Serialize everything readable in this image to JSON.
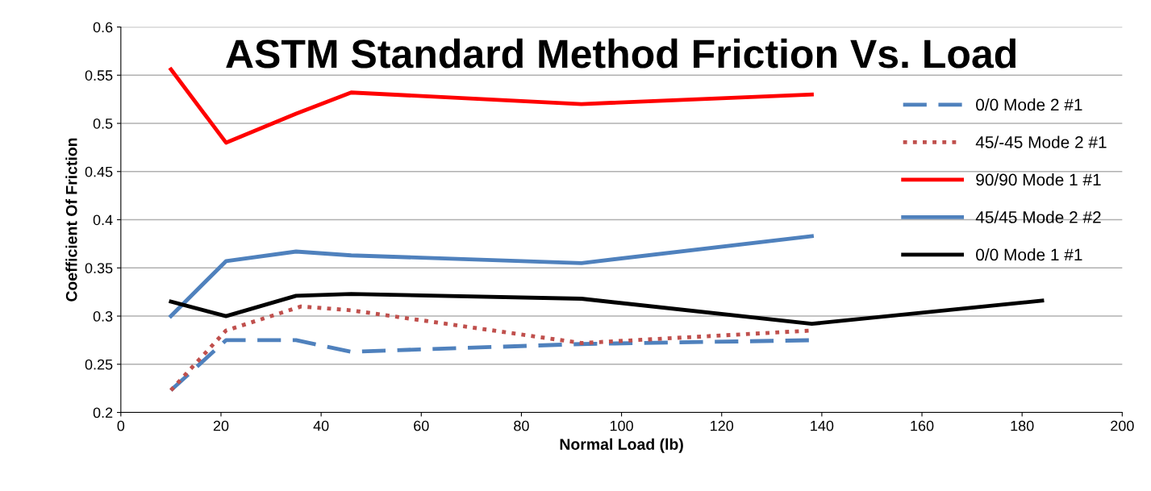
{
  "chart_data": {
    "type": "line",
    "title": "ASTM Standard Method Friction Vs. Load",
    "xlabel": "Normal Load (lb)",
    "ylabel": "Coefficient Of Friction",
    "xlim": [
      0,
      200
    ],
    "xticks": [
      0,
      20,
      40,
      60,
      80,
      100,
      120,
      140,
      160,
      180,
      200
    ],
    "ylim": [
      0.2,
      0.6
    ],
    "yticks": [
      0.2,
      0.25,
      0.3,
      0.35,
      0.4,
      0.45,
      0.5,
      0.55,
      0.6
    ],
    "grid": "y",
    "legend": "right",
    "marker": "none",
    "series": [
      {
        "name": "0/0 Mode 2 #1",
        "color": "#4f81bd",
        "line_style": "dashed",
        "x": [
          10,
          21,
          35,
          46,
          92,
          138
        ],
        "values": [
          0.223,
          0.275,
          0.275,
          0.263,
          0.271,
          0.275
        ]
      },
      {
        "name": "45/-45 Mode 2 #1",
        "color": "#c0504d",
        "line_style": "dotted",
        "x": [
          10,
          21,
          36,
          46,
          92,
          138
        ],
        "values": [
          0.223,
          0.285,
          0.31,
          0.306,
          0.272,
          0.285
        ]
      },
      {
        "name": "90/90 Mode 1 #1",
        "color": "#ff0000",
        "line_style": "solid",
        "x": [
          10,
          21,
          35,
          46,
          92,
          138
        ],
        "values": [
          0.556,
          0.48,
          0.51,
          0.532,
          0.52,
          0.53
        ]
      },
      {
        "name": "45/45 Mode 2 #2",
        "color": "#4f81bd",
        "line_style": "solid",
        "x": [
          10,
          21,
          35,
          46,
          92,
          138
        ],
        "values": [
          0.3,
          0.357,
          0.367,
          0.363,
          0.355,
          0.383
        ]
      },
      {
        "name": "0/0 Mode 1 #1",
        "color": "#000000",
        "line_style": "solid",
        "x": [
          10,
          21,
          35,
          46,
          92,
          138,
          184
        ],
        "values": [
          0.315,
          0.3,
          0.321,
          0.323,
          0.318,
          0.292,
          0.316
        ]
      }
    ]
  }
}
